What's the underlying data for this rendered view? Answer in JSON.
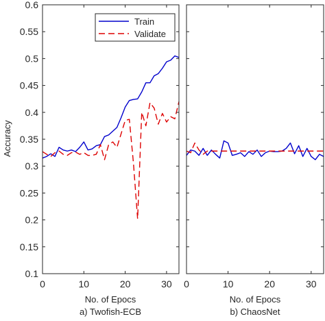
{
  "colors": {
    "train": "#0000cc",
    "validate": "#dd0000",
    "axis": "#262626",
    "background": "#ffffff"
  },
  "chart_data": [
    {
      "type": "line",
      "caption": "a) Twofish-ECB",
      "xlabel": "No. of Epocs",
      "ylabel": "Accuracy",
      "xlim": [
        0,
        33
      ],
      "ylim": [
        0.1,
        0.6
      ],
      "xticks": [
        0,
        10,
        20,
        30
      ],
      "yticks": [
        0.1,
        0.15,
        0.2,
        0.25,
        0.3,
        0.35,
        0.4,
        0.45,
        0.5,
        0.55,
        0.6
      ],
      "grid": false,
      "legend": {
        "position": "top-right",
        "entries": [
          "Train",
          "Validate"
        ]
      },
      "series": [
        {
          "name": "Train",
          "style": "solid",
          "color": "#0000cc",
          "x": [
            0,
            1,
            2,
            3,
            4,
            5,
            6,
            7,
            8,
            9,
            10,
            11,
            12,
            13,
            14,
            15,
            16,
            17,
            18,
            19,
            20,
            21,
            22,
            23,
            24,
            25,
            26,
            27,
            28,
            29,
            30,
            31,
            32,
            33
          ],
          "y": [
            0.315,
            0.318,
            0.323,
            0.318,
            0.335,
            0.33,
            0.328,
            0.33,
            0.327,
            0.335,
            0.345,
            0.33,
            0.332,
            0.338,
            0.34,
            0.355,
            0.358,
            0.365,
            0.372,
            0.39,
            0.41,
            0.422,
            0.424,
            0.425,
            0.438,
            0.455,
            0.455,
            0.468,
            0.472,
            0.482,
            0.494,
            0.497,
            0.505,
            0.502
          ]
        },
        {
          "name": "Validate",
          "style": "dashed",
          "color": "#dd0000",
          "x": [
            0,
            1,
            2,
            3,
            4,
            5,
            6,
            7,
            8,
            9,
            10,
            11,
            12,
            13,
            14,
            15,
            16,
            17,
            18,
            19,
            20,
            21,
            22,
            23,
            24,
            25,
            26,
            27,
            28,
            29,
            30,
            31,
            32,
            33
          ],
          "y": [
            0.327,
            0.322,
            0.318,
            0.325,
            0.328,
            0.322,
            0.32,
            0.325,
            0.326,
            0.322,
            0.325,
            0.32,
            0.32,
            0.322,
            0.34,
            0.312,
            0.34,
            0.345,
            0.335,
            0.36,
            0.385,
            0.387,
            0.305,
            0.202,
            0.4,
            0.375,
            0.418,
            0.408,
            0.378,
            0.398,
            0.382,
            0.392,
            0.388,
            0.42
          ]
        }
      ]
    },
    {
      "type": "line",
      "caption": "b) ChaosNet",
      "xlabel": "No. of Epocs",
      "xlim": [
        0,
        33
      ],
      "ylim": [
        0.1,
        0.6
      ],
      "xticks": [
        0,
        10,
        20,
        30
      ],
      "grid": false,
      "series": [
        {
          "name": "Train",
          "style": "solid",
          "color": "#0000cc",
          "x": [
            0,
            1,
            2,
            3,
            4,
            5,
            6,
            7,
            8,
            9,
            10,
            11,
            12,
            13,
            14,
            15,
            16,
            17,
            18,
            19,
            20,
            21,
            22,
            23,
            24,
            25,
            26,
            27,
            28,
            29,
            30,
            31,
            32,
            33
          ],
          "y": [
            0.32,
            0.33,
            0.328,
            0.32,
            0.333,
            0.32,
            0.33,
            0.322,
            0.315,
            0.347,
            0.343,
            0.32,
            0.322,
            0.325,
            0.318,
            0.327,
            0.322,
            0.33,
            0.318,
            0.325,
            0.328,
            0.327,
            0.327,
            0.328,
            0.333,
            0.343,
            0.323,
            0.338,
            0.318,
            0.333,
            0.318,
            0.312,
            0.322,
            0.318
          ]
        },
        {
          "name": "Validate",
          "style": "dashed",
          "color": "#dd0000",
          "x": [
            0,
            1,
            2,
            3,
            4,
            5,
            6,
            7,
            8,
            9,
            10,
            11,
            12,
            13,
            14,
            15,
            16,
            17,
            18,
            19,
            20,
            21,
            22,
            23,
            24,
            25,
            26,
            27,
            28,
            29,
            30,
            31,
            32,
            33
          ],
          "y": [
            0.328,
            0.325,
            0.343,
            0.33,
            0.322,
            0.328,
            0.328,
            0.328,
            0.328,
            0.328,
            0.328,
            0.328,
            0.328,
            0.328,
            0.328,
            0.328,
            0.328,
            0.328,
            0.328,
            0.328,
            0.328,
            0.328,
            0.328,
            0.328,
            0.328,
            0.328,
            0.328,
            0.328,
            0.328,
            0.328,
            0.328,
            0.328,
            0.328,
            0.328
          ]
        }
      ]
    }
  ]
}
